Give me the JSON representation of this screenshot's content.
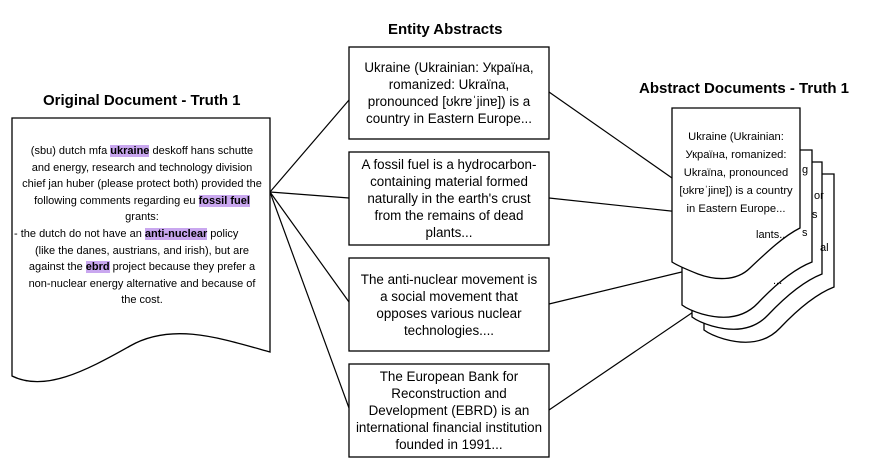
{
  "titles": {
    "original": "Original Document - Truth 1",
    "entity": "Entity Abstracts",
    "abstract": "Abstract Documents - Truth 1"
  },
  "original_document": {
    "lines": [
      [
        {
          "t": "(sbu) dutch mfa "
        },
        {
          "t": "ukraine",
          "hl": true
        },
        {
          "t": " deskoff hans schutte"
        }
      ],
      [
        {
          "t": "and energy, research and technology division"
        }
      ],
      [
        {
          "t": "chief jan huber (please protect both) provided the"
        }
      ],
      [
        {
          "t": "following comments regarding eu "
        },
        {
          "t": "fossil fuel",
          "hl": true
        }
      ],
      [
        {
          "t": "grants:"
        }
      ],
      [
        {
          "t": "- the dutch do not have an "
        },
        {
          "t": "anti-nuclear",
          "hl": true
        },
        {
          "t": " policy"
        }
      ],
      [
        {
          "t": "(like the danes, austrians, and irish), but are"
        }
      ],
      [
        {
          "t": "against the "
        },
        {
          "t": "ebrd",
          "hl": true
        },
        {
          "t": " project because they prefer a"
        }
      ],
      [
        {
          "t": "non-nuclear energy alternative and because of"
        }
      ],
      [
        {
          "t": "the cost."
        }
      ]
    ],
    "highlight_color": "#c9a7ef"
  },
  "entity_abstracts": [
    {
      "lines": [
        "Ukraine (Ukrainian: Україна,",
        "romanized: Ukraïna,",
        "pronounced [ʊkrɐˈjinɐ]) is a",
        "country in Eastern Europe..."
      ]
    },
    {
      "lines": [
        "A fossil fuel is a hydrocarbon-",
        "containing material formed",
        "naturally in the earth's crust",
        "from the remains of dead",
        "plants..."
      ]
    },
    {
      "lines": [
        "The anti-nuclear movement is",
        "a social movement that",
        "opposes various nuclear",
        "technologies...."
      ]
    },
    {
      "lines": [
        "The European Bank for",
        "Reconstruction and",
        "Development (EBRD) is an",
        "international financial institution",
        "founded in 1991..."
      ]
    }
  ],
  "abstract_document_front": {
    "lines": [
      "Ukraine (Ukrainian:",
      "Україна, romanized:",
      "Ukraïna, pronounced",
      "[ʊkrɐˈjinɐ]) is a country",
      "in Eastern Europe..."
    ]
  },
  "abstract_peek": [
    "g",
    "or",
    "s",
    "s",
    "al",
    "lants..",
    "..."
  ]
}
